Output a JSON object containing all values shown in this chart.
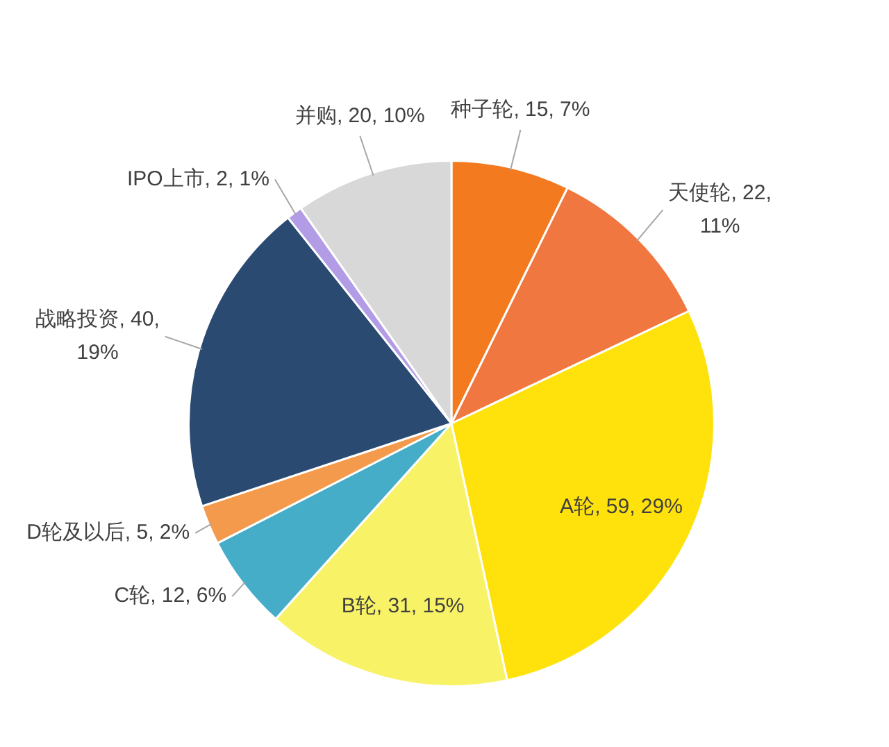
{
  "chart_data": {
    "type": "pie",
    "categories": [
      "种子轮",
      "天使轮",
      "A轮",
      "B轮",
      "C轮",
      "D轮及以后",
      "战略投资",
      "IPO上市",
      "并购"
    ],
    "values": [
      15,
      22,
      59,
      31,
      12,
      5,
      40,
      2,
      20
    ],
    "colors": [
      "#f47a1f",
      "#f0773f",
      "#ffe20c",
      "#f8f266",
      "#45adc8",
      "#f39a4c",
      "#2a4a72",
      "#b39ce6",
      "#d8d8d8"
    ],
    "value_labels": [
      "15, 7%",
      "22, 11%",
      "59, 29%",
      "31, 15%",
      "12, 6%",
      "5, 2%",
      "40, 19%",
      "2, 1%",
      "20, 10%"
    ]
  }
}
